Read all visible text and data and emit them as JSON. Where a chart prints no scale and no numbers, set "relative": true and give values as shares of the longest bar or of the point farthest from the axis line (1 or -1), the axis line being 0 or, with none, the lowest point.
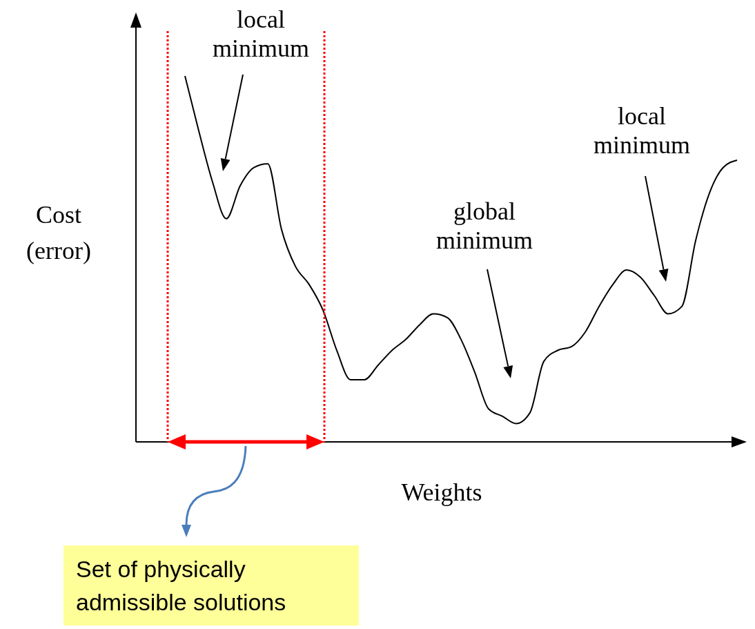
{
  "chart_data": {
    "type": "line",
    "relative": true,
    "xlabel": "Weights",
    "ylabel": "Cost (error)",
    "color": "#000000",
    "marker": "none",
    "line_style": "solid",
    "grid": false,
    "legend": false,
    "categories": [
      null,
      null,
      null,
      null,
      null,
      null,
      null,
      null,
      null,
      null,
      null,
      null,
      null,
      null,
      null,
      null,
      null,
      null,
      null,
      null,
      null,
      null,
      null,
      null,
      null,
      null,
      null,
      null,
      null,
      null,
      null,
      null,
      null,
      null,
      null,
      null,
      null,
      null,
      null,
      null,
      null
    ],
    "values": [
      1,
      0.85,
      0.71,
      0.61,
      0.7,
      0.75,
      0.76,
      0.58,
      0.48,
      0.43,
      0.36,
      0.25,
      0.17,
      0.17,
      0.21,
      0.25,
      0.28,
      0.32,
      0.35,
      0.34,
      0.28,
      0.19,
      0.09,
      0.07,
      0.05,
      0.08,
      0.22,
      0.25,
      0.26,
      0.3,
      0.37,
      0.43,
      0.47,
      0.45,
      0.4,
      0.35,
      0.37,
      0.55,
      0.68,
      0.75,
      0.77
    ],
    "annotations": [
      "local minimum",
      "global minimum",
      "local minimum",
      "Set of physically admissible solutions"
    ]
  }
}
